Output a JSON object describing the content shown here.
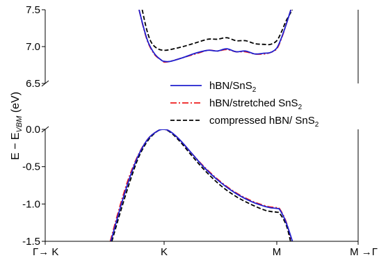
{
  "chart_data": {
    "type": "line",
    "ylabel_main": "E − E",
    "ylabel_sub": "VBM",
    "ylabel_unit": " (eV)",
    "x_tick_labels": [
      "Γ→ K",
      "K",
      "M",
      "M →Γ"
    ],
    "x_tick_positions": [
      0.0,
      0.38,
      0.74,
      1.0
    ],
    "panels": [
      {
        "name": "conduction",
        "ylim": [
          6.5,
          7.5
        ],
        "yticks": [
          6.5,
          7.0,
          7.5
        ],
        "ytick_labels": [
          "6.5",
          "7.0",
          "7.5"
        ]
      },
      {
        "name": "valence",
        "ylim": [
          -1.5,
          0.0
        ],
        "yticks": [
          -1.5,
          -1.0,
          -0.5,
          0.0
        ],
        "ytick_labels": [
          "-1.5",
          "-1.0",
          "-0.5",
          "0.0"
        ]
      }
    ],
    "legend": [
      {
        "series": "hbn_sns2",
        "label_main": "hBN/SnS",
        "label_sub": "2",
        "color": "#1f1fcf",
        "dash": "solid"
      },
      {
        "series": "hbn_stretched",
        "label_main": "hBN/stretched SnS",
        "label_sub": "2",
        "color": "#ee1c1c",
        "dash": "dashdot"
      },
      {
        "series": "compressed",
        "label_main": "compressed hBN/ SnS",
        "label_sub": "2",
        "color": "#000000",
        "dash": "dashed"
      }
    ],
    "series": [
      {
        "id": "hbn_sns2",
        "color": "#1f1fcf",
        "conduction": {
          "x": [
            0.3,
            0.315,
            0.33,
            0.35,
            0.37,
            0.38,
            0.4,
            0.44,
            0.48,
            0.52,
            0.55,
            0.58,
            0.61,
            0.64,
            0.67,
            0.7,
            0.72,
            0.74,
            0.755,
            0.77,
            0.785
          ],
          "y": [
            7.5,
            7.25,
            7.05,
            6.9,
            6.82,
            6.8,
            6.8,
            6.85,
            6.91,
            6.95,
            6.94,
            6.97,
            6.93,
            6.94,
            6.9,
            6.91,
            6.92,
            6.98,
            7.12,
            7.3,
            7.5
          ]
        },
        "valence": {
          "x": [
            0.21,
            0.24,
            0.27,
            0.3,
            0.33,
            0.36,
            0.38,
            0.4,
            0.43,
            0.47,
            0.51,
            0.56,
            0.61,
            0.66,
            0.7,
            0.72,
            0.74,
            0.75,
            0.77,
            0.79
          ],
          "y": [
            -1.5,
            -1.05,
            -0.65,
            -0.33,
            -0.12,
            -0.02,
            0.0,
            -0.03,
            -0.14,
            -0.33,
            -0.52,
            -0.71,
            -0.86,
            -0.97,
            -1.03,
            -1.05,
            -1.06,
            -1.08,
            -1.25,
            -1.5
          ]
        }
      },
      {
        "id": "hbn_stretched",
        "color": "#ee1c1c",
        "conduction": {
          "x": [
            0.3,
            0.315,
            0.33,
            0.35,
            0.37,
            0.38,
            0.4,
            0.44,
            0.48,
            0.52,
            0.55,
            0.58,
            0.61,
            0.64,
            0.67,
            0.7,
            0.72,
            0.74,
            0.755,
            0.77,
            0.785
          ],
          "y": [
            7.5,
            7.24,
            7.04,
            6.89,
            6.82,
            6.79,
            6.8,
            6.85,
            6.9,
            6.95,
            6.94,
            6.96,
            6.93,
            6.93,
            6.9,
            6.9,
            6.92,
            6.97,
            7.11,
            7.3,
            7.5
          ]
        },
        "valence": {
          "x": [
            0.208,
            0.238,
            0.268,
            0.3,
            0.33,
            0.36,
            0.38,
            0.4,
            0.43,
            0.47,
            0.51,
            0.56,
            0.61,
            0.66,
            0.7,
            0.72,
            0.74,
            0.75,
            0.77,
            0.787
          ],
          "y": [
            -1.5,
            -1.04,
            -0.64,
            -0.32,
            -0.12,
            -0.02,
            0.0,
            -0.03,
            -0.14,
            -0.33,
            -0.51,
            -0.7,
            -0.85,
            -0.96,
            -1.02,
            -1.04,
            -1.05,
            -1.07,
            -1.24,
            -1.5
          ]
        }
      },
      {
        "id": "compressed",
        "color": "#000000",
        "conduction": {
          "x": [
            0.31,
            0.325,
            0.34,
            0.36,
            0.38,
            0.4,
            0.44,
            0.48,
            0.52,
            0.55,
            0.58,
            0.61,
            0.64,
            0.67,
            0.7,
            0.72,
            0.74,
            0.755,
            0.77,
            0.79
          ],
          "y": [
            7.5,
            7.22,
            7.05,
            6.97,
            6.95,
            6.96,
            7.0,
            7.05,
            7.1,
            7.1,
            7.12,
            7.08,
            7.08,
            7.04,
            7.03,
            7.03,
            7.08,
            7.2,
            7.35,
            7.5
          ]
        },
        "valence": {
          "x": [
            0.213,
            0.243,
            0.273,
            0.3,
            0.33,
            0.36,
            0.38,
            0.4,
            0.43,
            0.47,
            0.51,
            0.56,
            0.61,
            0.66,
            0.7,
            0.72,
            0.74,
            0.75,
            0.77,
            0.784
          ],
          "y": [
            -1.5,
            -1.07,
            -0.67,
            -0.36,
            -0.14,
            -0.02,
            0.0,
            -0.04,
            -0.16,
            -0.36,
            -0.55,
            -0.75,
            -0.9,
            -1.01,
            -1.08,
            -1.1,
            -1.11,
            -1.13,
            -1.28,
            -1.5
          ]
        }
      }
    ]
  }
}
